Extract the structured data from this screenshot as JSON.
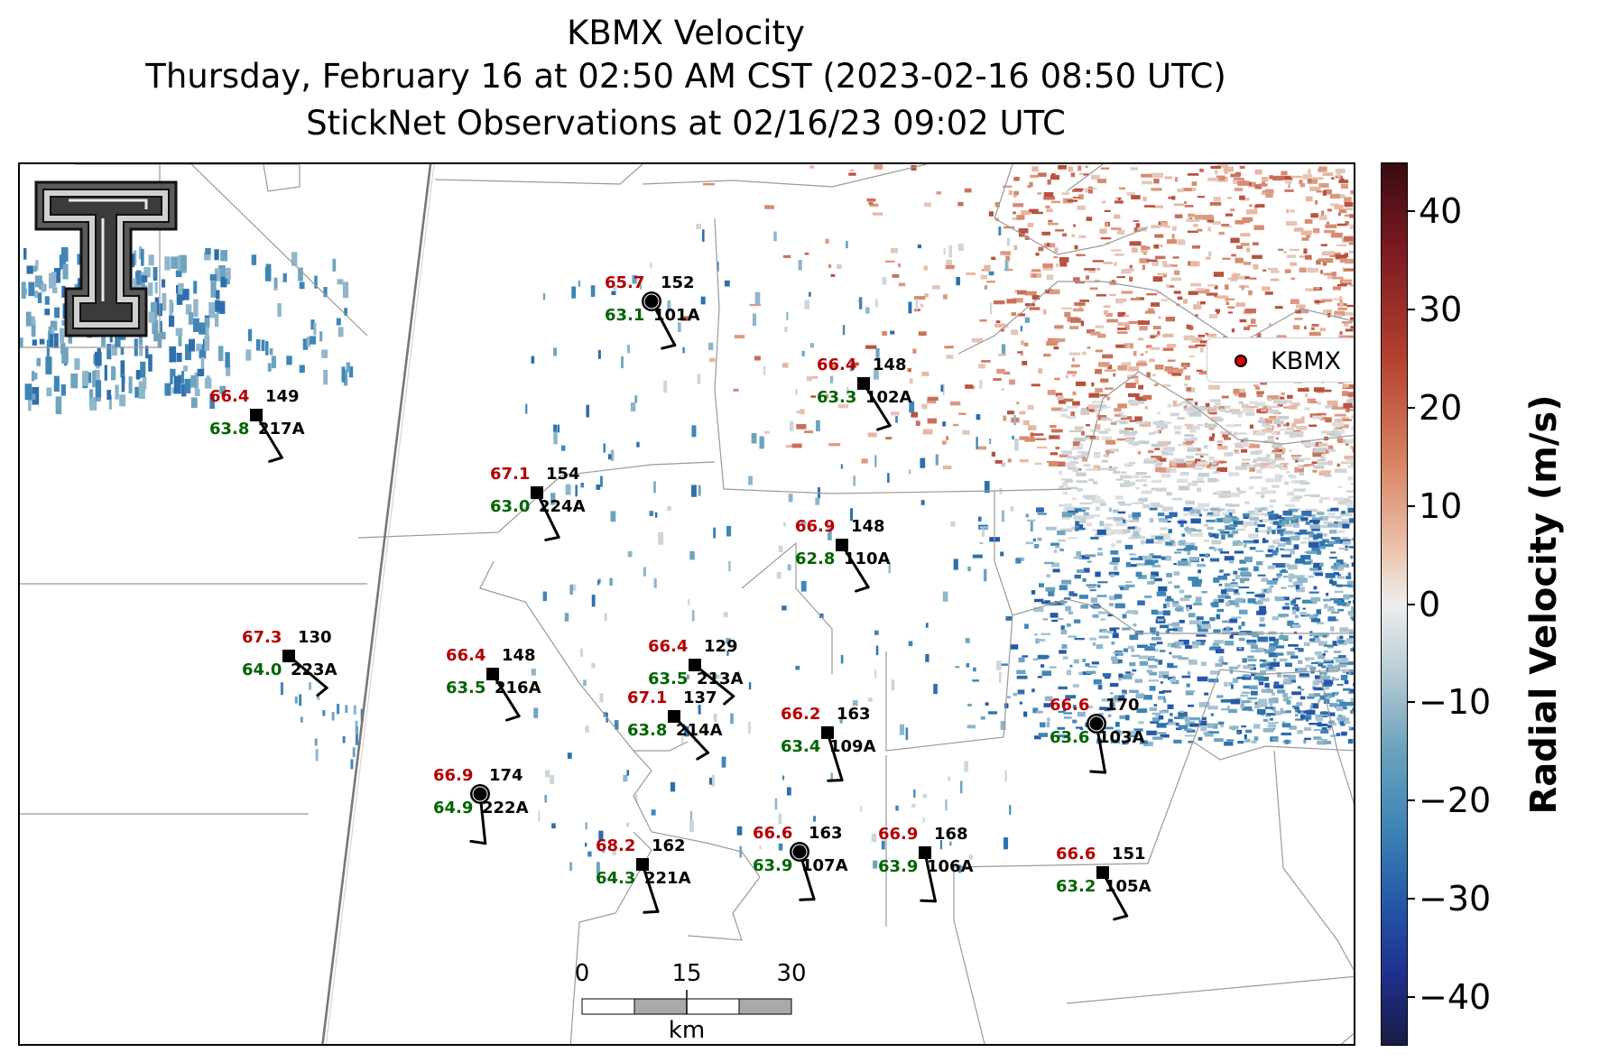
{
  "title": {
    "line1": "KBMX Velocity",
    "line2": "Thursday, February 16 at 02:50 AM CST (2023-02-16 08:50 UTC)",
    "line3": "StickNet Observations at 02/16/23 09:02 UTC"
  },
  "legend": {
    "label": "KBMX",
    "marker_color": "#e00000"
  },
  "colorbar": {
    "title": "Radial Velocity (m/s)",
    "ticks": [
      "40",
      "30",
      "20",
      "10",
      "0",
      "−10",
      "−20",
      "−30",
      "−40"
    ],
    "range": [
      -45,
      45
    ],
    "colors": [
      "#1a1c44",
      "#2458a9",
      "#6ea4bf",
      "#eeeeee",
      "#d98462",
      "#7d1a22",
      "#3a0b12"
    ]
  },
  "scalebar": {
    "labels": [
      "0",
      "15",
      "30"
    ],
    "unit": "km"
  },
  "logo": {
    "icon": "texas-tech-double-t-logo"
  },
  "stations": [
    {
      "id": "101A",
      "temp": "65.7",
      "dew": "63.1",
      "dir": "152",
      "marker": "circle"
    },
    {
      "id": "102A",
      "temp": "66.4",
      "dew": "63.3",
      "dir": "148",
      "marker": "square"
    },
    {
      "id": "217A",
      "temp": "66.4",
      "dew": "63.8",
      "dir": "149",
      "marker": "square"
    },
    {
      "id": "224A",
      "temp": "67.1",
      "dew": "63.0",
      "dir": "154",
      "marker": "square"
    },
    {
      "id": "110A",
      "temp": "66.9",
      "dew": "62.8",
      "dir": "148",
      "marker": "square"
    },
    {
      "id": "223A",
      "temp": "67.3",
      "dew": "64.0",
      "dir": "130",
      "marker": "square"
    },
    {
      "id": "216A",
      "temp": "66.4",
      "dew": "63.5",
      "dir": "148",
      "marker": "square"
    },
    {
      "id": "213A",
      "temp": "66.4",
      "dew": "63.5",
      "dir": "129",
      "marker": "square"
    },
    {
      "id": "214A",
      "temp": "67.1",
      "dew": "63.8",
      "dir": "137",
      "marker": "square"
    },
    {
      "id": "109A",
      "temp": "66.2",
      "dew": "63.4",
      "dir": "163",
      "marker": "square"
    },
    {
      "id": "103A",
      "temp": "66.6",
      "dew": "63.6",
      "dir": "170",
      "marker": "circle"
    },
    {
      "id": "222A",
      "temp": "66.9",
      "dew": "64.9",
      "dir": "174",
      "marker": "circle"
    },
    {
      "id": "107A",
      "temp": "66.6",
      "dew": "63.9",
      "dir": "163",
      "marker": "circle"
    },
    {
      "id": "106A",
      "temp": "66.9",
      "dew": "63.9",
      "dir": "168",
      "marker": "square"
    },
    {
      "id": "221A",
      "temp": "68.2",
      "dew": "64.3",
      "dir": "162",
      "marker": "square"
    },
    {
      "id": "105A",
      "temp": "66.6",
      "dew": "63.2",
      "dir": "151",
      "marker": "square"
    }
  ]
}
